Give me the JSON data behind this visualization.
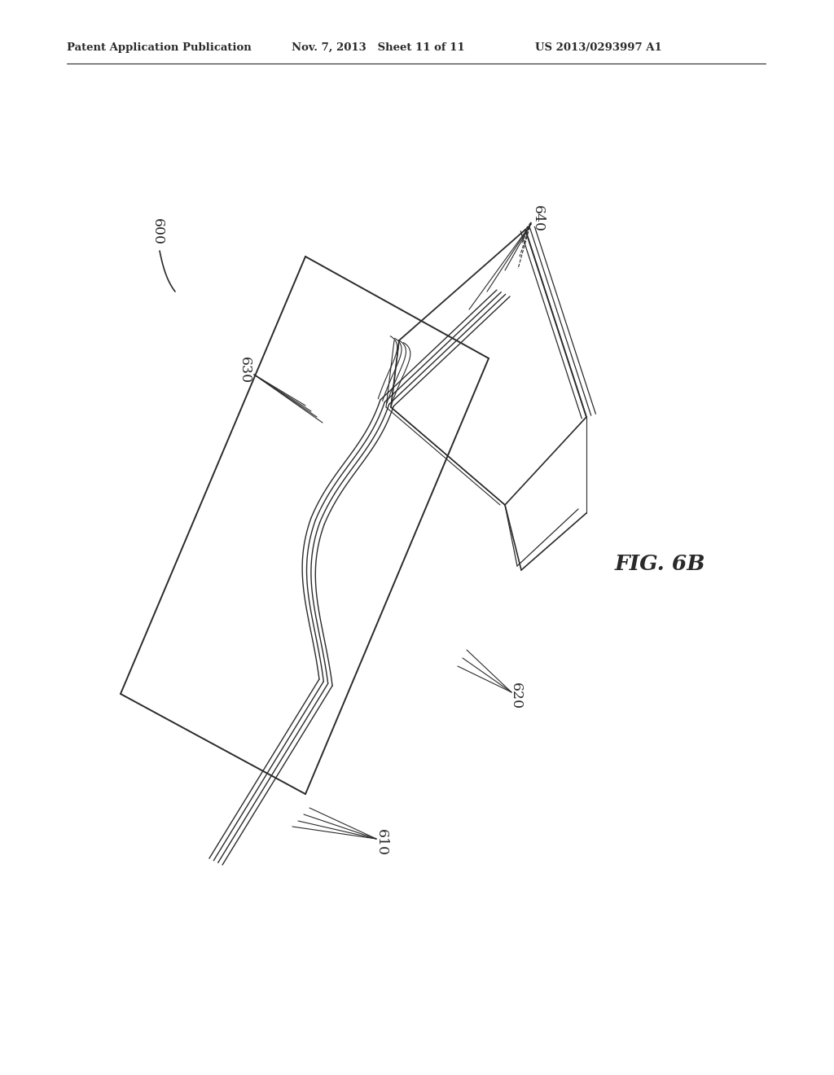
{
  "bg_color": "#ffffff",
  "line_color": "#2a2a2a",
  "header_left": "Patent Application Publication",
  "header_mid": "Nov. 7, 2013   Sheet 11 of 11",
  "header_right": "US 2013/0293997 A1",
  "fig_label": "FIG. 6B",
  "label_600": "600",
  "label_610": "610",
  "label_620": "620",
  "label_630": "630",
  "label_640": "640"
}
